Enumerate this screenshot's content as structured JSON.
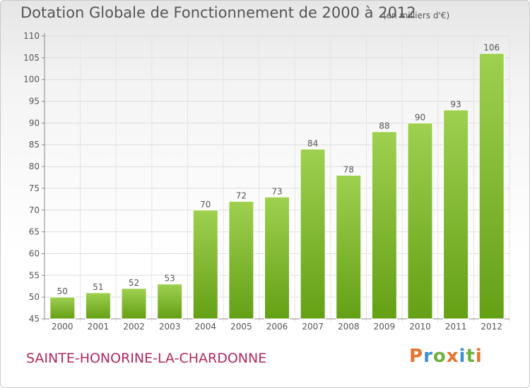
{
  "header": {
    "title": "Dotation Globale de Fonctionnement de 2000 à 2012",
    "unit": "(en milliers d'€)"
  },
  "footer": {
    "commune": "SAINTE-HONORINE-LA-CHARDONNE",
    "logo_text": "Proxiti"
  },
  "colors": {
    "bar_light": "#9fd050",
    "bar_dark": "#64a015",
    "commune": "#b5285c",
    "logo": [
      "#e8732a",
      "#3d8fd1",
      "#6db23f",
      "#e8732a",
      "#3d8fd1",
      "#6db23f",
      "#e8732a"
    ]
  },
  "chart_data": {
    "type": "bar",
    "categories": [
      "2000",
      "2001",
      "2002",
      "2003",
      "2004",
      "2005",
      "2006",
      "2007",
      "2008",
      "2009",
      "2010",
      "2011",
      "2012"
    ],
    "values": [
      50,
      51,
      52,
      53,
      70,
      72,
      73,
      84,
      78,
      88,
      90,
      93,
      106
    ],
    "title": "Dotation Globale de Fonctionnement de 2000 à 2012",
    "subtitle": "(en milliers d'€)",
    "xlabel": "",
    "ylabel": "",
    "ylim": [
      45,
      110
    ],
    "yticks": [
      45,
      50,
      55,
      60,
      65,
      70,
      75,
      80,
      85,
      90,
      95,
      100,
      105,
      110
    ],
    "grid": true,
    "data_labels": true
  }
}
